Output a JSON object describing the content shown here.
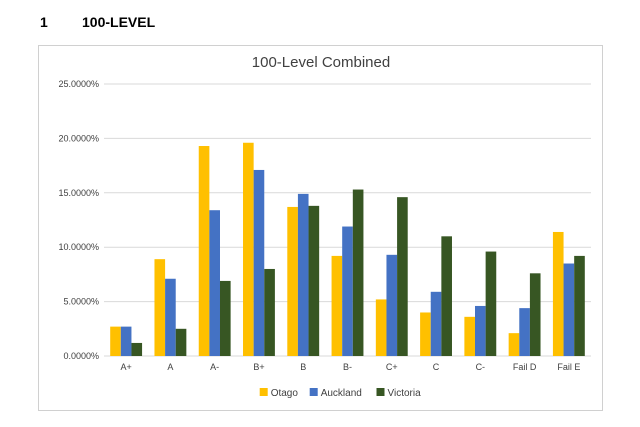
{
  "section": {
    "number": "1",
    "title": "100-LEVEL"
  },
  "colors": {
    "Otago": "#FFC000",
    "Auckland": "#4472C4",
    "Victoria": "#375623",
    "grid": "#d9d9d9"
  },
  "chart_data": {
    "type": "bar",
    "title": "100-Level Combined",
    "categories": [
      "A+",
      "A",
      "A-",
      "B+",
      "B",
      "B-",
      "C+",
      "C",
      "C-",
      "Fail D",
      "Fail E"
    ],
    "series": [
      {
        "name": "Otago",
        "values": [
          2.7,
          8.9,
          19.3,
          19.6,
          13.7,
          9.2,
          5.2,
          4.0,
          3.6,
          2.1,
          11.4
        ]
      },
      {
        "name": "Auckland",
        "values": [
          2.7,
          7.1,
          13.4,
          17.1,
          14.9,
          11.9,
          9.3,
          5.9,
          4.6,
          4.4,
          8.5
        ]
      },
      {
        "name": "Victoria",
        "values": [
          1.2,
          2.5,
          6.9,
          8.0,
          13.8,
          15.3,
          14.6,
          11.0,
          9.6,
          7.6,
          9.2
        ]
      }
    ],
    "ylim": [
      0,
      25
    ],
    "yticks": [
      "0.0000%",
      "5.0000%",
      "10.0000%",
      "15.0000%",
      "20.0000%",
      "25.0000%"
    ],
    "grid": true,
    "legend": "bottom"
  }
}
